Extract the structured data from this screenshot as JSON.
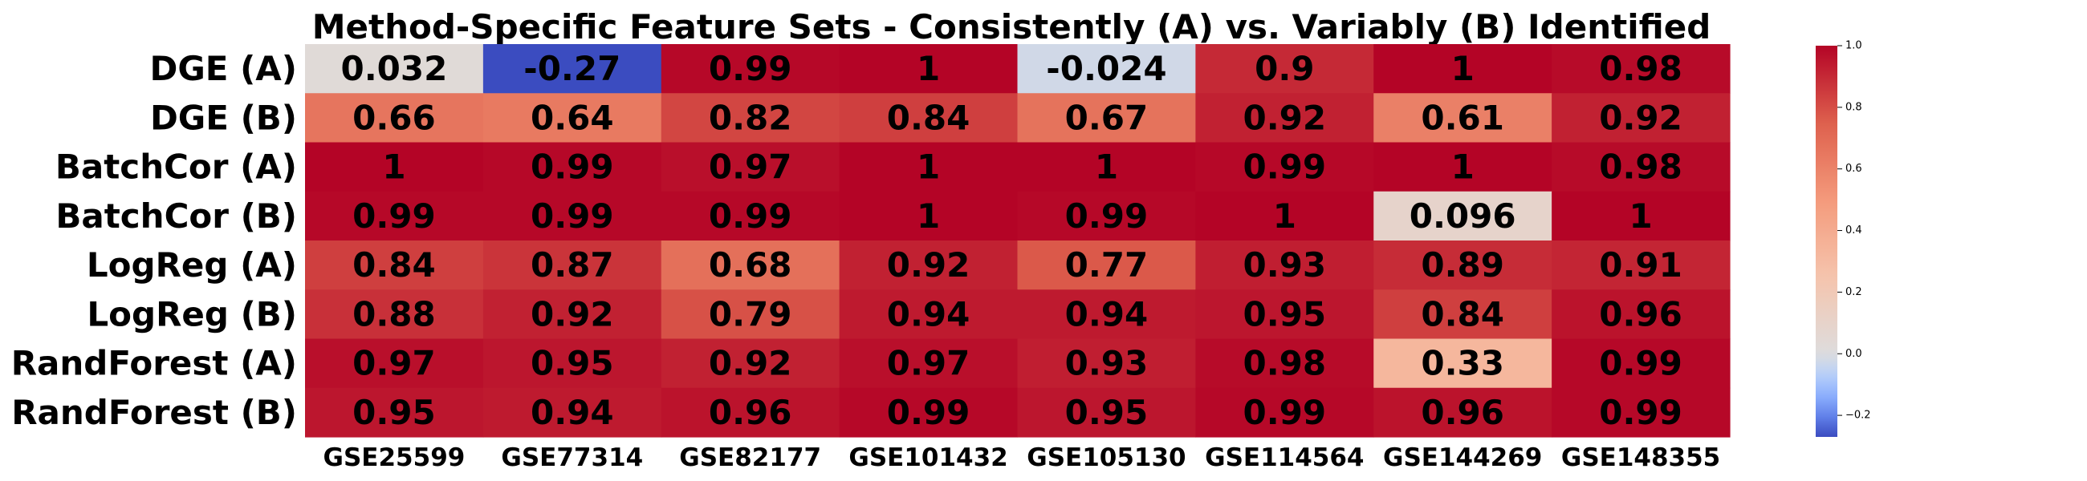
{
  "chart_data": {
    "type": "heatmap",
    "title": "Method-Specific Feature Sets - Consistently (A) vs. Variably (B) Identified",
    "xlabel": "",
    "ylabel": "",
    "x_categories": [
      "GSE25599",
      "GSE77314",
      "GSE82177",
      "GSE101432",
      "GSE105130",
      "GSE114564",
      "GSE144269",
      "GSE148355"
    ],
    "y_categories": [
      "DGE (A)",
      "DGE (B)",
      "BatchCor (A)",
      "BatchCor (B)",
      "LogReg (A)",
      "LogReg (B)",
      "RandForest (A)",
      "RandForest (B)"
    ],
    "values": [
      [
        0.032,
        -0.27,
        0.99,
        1,
        -0.024,
        0.9,
        1,
        0.98
      ],
      [
        0.66,
        0.64,
        0.82,
        0.84,
        0.67,
        0.92,
        0.61,
        0.92
      ],
      [
        1,
        0.99,
        0.97,
        1,
        1,
        0.99,
        1,
        0.98
      ],
      [
        0.99,
        0.99,
        0.99,
        1,
        0.99,
        1,
        0.096,
        1
      ],
      [
        0.84,
        0.87,
        0.68,
        0.92,
        0.77,
        0.93,
        0.89,
        0.91
      ],
      [
        0.88,
        0.92,
        0.79,
        0.94,
        0.94,
        0.95,
        0.84,
        0.96
      ],
      [
        0.97,
        0.95,
        0.92,
        0.97,
        0.93,
        0.98,
        0.33,
        0.99
      ],
      [
        0.95,
        0.94,
        0.96,
        0.99,
        0.95,
        0.99,
        0.96,
        0.99
      ]
    ],
    "value_labels": [
      [
        "0.032",
        "-0.27",
        "0.99",
        "1",
        "-0.024",
        "0.9",
        "1",
        "0.98"
      ],
      [
        "0.66",
        "0.64",
        "0.82",
        "0.84",
        "0.67",
        "0.92",
        "0.61",
        "0.92"
      ],
      [
        "1",
        "0.99",
        "0.97",
        "1",
        "1",
        "0.99",
        "1",
        "0.98"
      ],
      [
        "0.99",
        "0.99",
        "0.99",
        "1",
        "0.99",
        "1",
        "0.096",
        "1"
      ],
      [
        "0.84",
        "0.87",
        "0.68",
        "0.92",
        "0.77",
        "0.93",
        "0.89",
        "0.91"
      ],
      [
        "0.88",
        "0.92",
        "0.79",
        "0.94",
        "0.94",
        "0.95",
        "0.84",
        "0.96"
      ],
      [
        "0.97",
        "0.95",
        "0.92",
        "0.97",
        "0.93",
        "0.98",
        "0.33",
        "0.99"
      ],
      [
        "0.95",
        "0.94",
        "0.96",
        "0.99",
        "0.95",
        "0.99",
        "0.96",
        "0.99"
      ]
    ],
    "colormap": "coolwarm",
    "colorbar": {
      "vmin": -0.27,
      "vmax": 1.0,
      "center": 0.0,
      "ticks": [
        -0.2,
        0.0,
        0.2,
        0.4,
        0.6,
        0.8,
        1.0
      ],
      "tick_labels": [
        "−0.2",
        "0.0",
        "0.2",
        "0.4",
        "0.6",
        "0.8",
        "1.0"
      ]
    },
    "grid": false,
    "legend": "colorbar-right"
  }
}
